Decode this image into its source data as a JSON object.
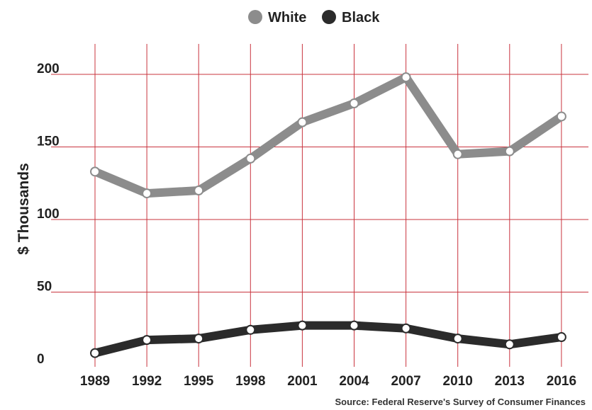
{
  "chart_data": {
    "type": "line",
    "x": [
      1989,
      1992,
      1995,
      1998,
      2001,
      2004,
      2007,
      2010,
      2013,
      2016
    ],
    "x_tick_labels": [
      "1989",
      "1992",
      "1995",
      "1998",
      "2001",
      "2004",
      "2007",
      "2010",
      "2013",
      "2016"
    ],
    "series": [
      {
        "name": "White",
        "color": "#8c8c8c",
        "values": [
          133,
          118,
          120,
          142,
          167,
          180,
          198,
          145,
          147,
          171
        ]
      },
      {
        "name": "Black",
        "color": "#2b2b2b",
        "values": [
          8,
          17,
          18,
          24,
          27,
          27,
          25,
          18,
          14,
          19
        ]
      }
    ],
    "y_ticks": [
      0,
      50,
      100,
      150,
      200
    ],
    "y_tick_labels": [
      "0",
      "50",
      "100",
      "150",
      "200"
    ],
    "ylim": [
      0,
      210
    ],
    "xlabel": "",
    "ylabel": "$ Thousands",
    "grid": true,
    "grid_color": "#c9343e",
    "legend_position": "top-center",
    "source": "Source: Federal Reserve's Survey of Consumer Finances"
  }
}
